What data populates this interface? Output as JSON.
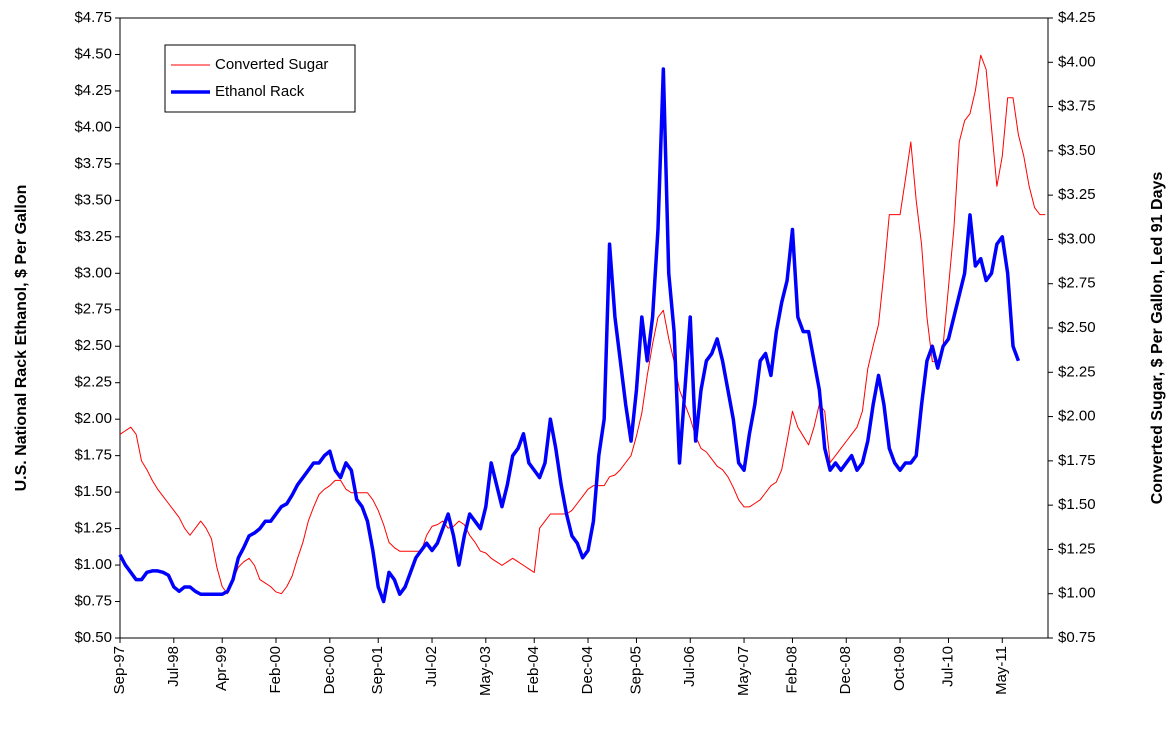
{
  "chart_data": {
    "type": "line",
    "y_label": "U.S. National Rack Ethanol, $ Per Gallon",
    "y2_label": "Converted Sugar, $ Per Gallon, Led 91 Days",
    "legend": "upper left",
    "grid": false,
    "categories": [
      "Sep-97",
      null,
      null,
      null,
      null,
      null,
      null,
      null,
      null,
      null,
      "Jul-98",
      null,
      null,
      null,
      null,
      null,
      null,
      null,
      null,
      "Apr-99",
      null,
      null,
      null,
      null,
      null,
      null,
      null,
      null,
      null,
      "Feb-00",
      null,
      null,
      null,
      null,
      null,
      null,
      null,
      null,
      null,
      "Dec-00",
      null,
      null,
      null,
      null,
      null,
      null,
      null,
      null,
      "Sep-01",
      null,
      null,
      null,
      null,
      null,
      null,
      null,
      null,
      null,
      "Jul-02",
      null,
      null,
      null,
      null,
      null,
      null,
      null,
      null,
      null,
      "May-03",
      null,
      null,
      null,
      null,
      null,
      null,
      null,
      null,
      "Feb-04",
      null,
      null,
      null,
      null,
      null,
      null,
      null,
      null,
      null,
      "Dec-04",
      null,
      null,
      null,
      null,
      null,
      null,
      null,
      null,
      "Sep-05",
      null,
      null,
      null,
      null,
      null,
      null,
      null,
      null,
      null,
      "Jul-06",
      null,
      null,
      null,
      null,
      null,
      null,
      null,
      null,
      null,
      "May-07",
      null,
      null,
      null,
      null,
      null,
      null,
      null,
      null,
      "Feb-08",
      null,
      null,
      null,
      null,
      null,
      null,
      null,
      null,
      null,
      "Dec-08",
      null,
      null,
      null,
      null,
      null,
      null,
      null,
      null,
      null,
      "Oct-09",
      null,
      null,
      null,
      null,
      null,
      null,
      null,
      null,
      "Jul-10",
      null,
      null,
      null,
      null,
      null,
      null,
      null,
      null,
      null,
      "May-11",
      null,
      null,
      null,
      null,
      null,
      null,
      null,
      null
    ],
    "series": [
      {
        "name": "Converted Sugar",
        "color": "#ff0000",
        "line_width": 1,
        "axis": "y2",
        "values": [
          1.9,
          1.92,
          1.94,
          1.9,
          1.75,
          1.7,
          1.64,
          1.59,
          1.55,
          1.51,
          1.47,
          1.43,
          1.37,
          1.33,
          1.37,
          1.41,
          1.37,
          1.31,
          1.15,
          1.04,
          1.0,
          1.08,
          1.15,
          1.18,
          1.2,
          1.16,
          1.08,
          1.06,
          1.04,
          1.01,
          1.0,
          1.04,
          1.1,
          1.2,
          1.29,
          1.41,
          1.49,
          1.56,
          1.59,
          1.61,
          1.64,
          1.64,
          1.59,
          1.57,
          1.57,
          1.57,
          1.57,
          1.53,
          1.47,
          1.39,
          1.29,
          1.26,
          1.24,
          1.24,
          1.24,
          1.24,
          1.24,
          1.33,
          1.38,
          1.39,
          1.41,
          1.37,
          1.38,
          1.41,
          1.39,
          1.33,
          1.29,
          1.24,
          1.23,
          1.2,
          1.18,
          1.16,
          1.18,
          1.2,
          1.18,
          1.16,
          1.14,
          1.12,
          1.37,
          1.41,
          1.45,
          1.45,
          1.45,
          1.45,
          1.47,
          1.51,
          1.55,
          1.59,
          1.61,
          1.61,
          1.61,
          1.66,
          1.67,
          1.7,
          1.74,
          1.78,
          1.89,
          2.02,
          2.23,
          2.41,
          2.56,
          2.6,
          2.44,
          2.31,
          2.15,
          2.07,
          1.99,
          1.89,
          1.82,
          1.8,
          1.76,
          1.72,
          1.7,
          1.66,
          1.6,
          1.53,
          1.49,
          1.49,
          1.51,
          1.53,
          1.57,
          1.61,
          1.63,
          1.7,
          1.86,
          2.03,
          1.94,
          1.89,
          1.84,
          1.94,
          2.07,
          2.03,
          1.74,
          1.78,
          1.82,
          1.86,
          1.9,
          1.94,
          2.03,
          2.27,
          2.4,
          2.52,
          2.81,
          3.14,
          3.14,
          3.14,
          3.34,
          3.55,
          3.22,
          2.97,
          2.56,
          2.31,
          2.31,
          2.4,
          2.73,
          3.06,
          3.55,
          3.67,
          3.71,
          3.84,
          4.04,
          3.96,
          3.63,
          3.3,
          3.47,
          3.8,
          3.8,
          3.59,
          3.47,
          3.3,
          3.18,
          3.14,
          3.14
        ]
      },
      {
        "name": "Ethanol Rack",
        "color": "#0000ff",
        "line_width": 3.5,
        "axis": "y",
        "values": [
          1.07,
          1.0,
          0.95,
          0.9,
          0.9,
          0.95,
          0.96,
          0.96,
          0.95,
          0.93,
          0.85,
          0.82,
          0.85,
          0.85,
          0.82,
          0.8,
          0.8,
          0.8,
          0.8,
          0.8,
          0.82,
          0.9,
          1.05,
          1.12,
          1.2,
          1.22,
          1.25,
          1.3,
          1.3,
          1.35,
          1.4,
          1.42,
          1.48,
          1.55,
          1.6,
          1.65,
          1.7,
          1.7,
          1.75,
          1.78,
          1.65,
          1.6,
          1.7,
          1.65,
          1.45,
          1.4,
          1.3,
          1.1,
          0.85,
          0.75,
          0.95,
          0.9,
          0.8,
          0.85,
          0.95,
          1.05,
          1.1,
          1.15,
          1.1,
          1.15,
          1.25,
          1.35,
          1.2,
          1.0,
          1.2,
          1.35,
          1.3,
          1.25,
          1.4,
          1.7,
          1.55,
          1.4,
          1.55,
          1.75,
          1.8,
          1.9,
          1.7,
          1.65,
          1.6,
          1.7,
          2.0,
          1.8,
          1.55,
          1.35,
          1.2,
          1.15,
          1.05,
          1.1,
          1.3,
          1.75,
          2.0,
          3.2,
          2.7,
          2.4,
          2.1,
          1.85,
          2.2,
          2.7,
          2.4,
          2.7,
          3.3,
          4.4,
          3.0,
          2.6,
          1.7,
          2.2,
          2.7,
          1.85,
          2.2,
          2.4,
          2.45,
          2.55,
          2.4,
          2.2,
          2.0,
          1.7,
          1.65,
          1.9,
          2.1,
          2.4,
          2.45,
          2.3,
          2.6,
          2.8,
          2.95,
          3.3,
          2.7,
          2.6,
          2.6,
          2.4,
          2.2,
          1.8,
          1.65,
          1.7,
          1.65,
          1.7,
          1.75,
          1.65,
          1.7,
          1.85,
          2.1,
          2.3,
          2.1,
          1.8,
          1.7,
          1.65,
          1.7,
          1.7,
          1.75,
          2.1,
          2.4,
          2.5,
          2.35,
          2.5,
          2.55,
          2.7,
          2.85,
          3.0,
          3.4,
          3.05,
          3.1,
          2.95,
          3.0,
          3.2,
          3.25,
          3.0,
          2.5,
          2.4,
          null,
          null,
          null,
          null,
          null
        ]
      }
    ],
    "ylim": [
      0.5,
      4.75
    ],
    "yticks": [
      {
        "value": 0.5,
        "label": "$0.50"
      },
      {
        "value": 0.75,
        "label": "$0.75"
      },
      {
        "value": 1,
        "label": "$1.00"
      },
      {
        "value": 1.25,
        "label": "$1.25"
      },
      {
        "value": 1.5,
        "label": "$1.50"
      },
      {
        "value": 1.75,
        "label": "$1.75"
      },
      {
        "value": 2,
        "label": "$2.00"
      },
      {
        "value": 2.25,
        "label": "$2.25"
      },
      {
        "value": 2.5,
        "label": "$2.50"
      },
      {
        "value": 2.75,
        "label": "$2.75"
      },
      {
        "value": 3,
        "label": "$3.00"
      },
      {
        "value": 3.25,
        "label": "$3.25"
      },
      {
        "value": 3.5,
        "label": "$3.50"
      },
      {
        "value": 3.75,
        "label": "$3.75"
      },
      {
        "value": 4,
        "label": "$4.00"
      },
      {
        "value": 4.25,
        "label": "$4.25"
      },
      {
        "value": 4.5,
        "label": "$4.50"
      },
      {
        "value": 4.75,
        "label": "$4.75"
      }
    ],
    "y2lim": [
      0.75,
      4.25
    ],
    "y2ticks": [
      {
        "value": 0.75,
        "label": "$0.75"
      },
      {
        "value": 1,
        "label": "$1.00"
      },
      {
        "value": 1.25,
        "label": "$1.25"
      },
      {
        "value": 1.5,
        "label": "$1.50"
      },
      {
        "value": 1.75,
        "label": "$1.75"
      },
      {
        "value": 2,
        "label": "$2.00"
      },
      {
        "value": 2.25,
        "label": "$2.25"
      },
      {
        "value": 2.5,
        "label": "$2.50"
      },
      {
        "value": 2.75,
        "label": "$2.75"
      },
      {
        "value": 3,
        "label": "$3.00"
      },
      {
        "value": 3.25,
        "label": "$3.25"
      },
      {
        "value": 3.5,
        "label": "$3.50"
      },
      {
        "value": 3.75,
        "label": "$3.75"
      },
      {
        "value": 4,
        "label": "$4.00"
      },
      {
        "value": 4.25,
        "label": "$4.25"
      }
    ]
  }
}
